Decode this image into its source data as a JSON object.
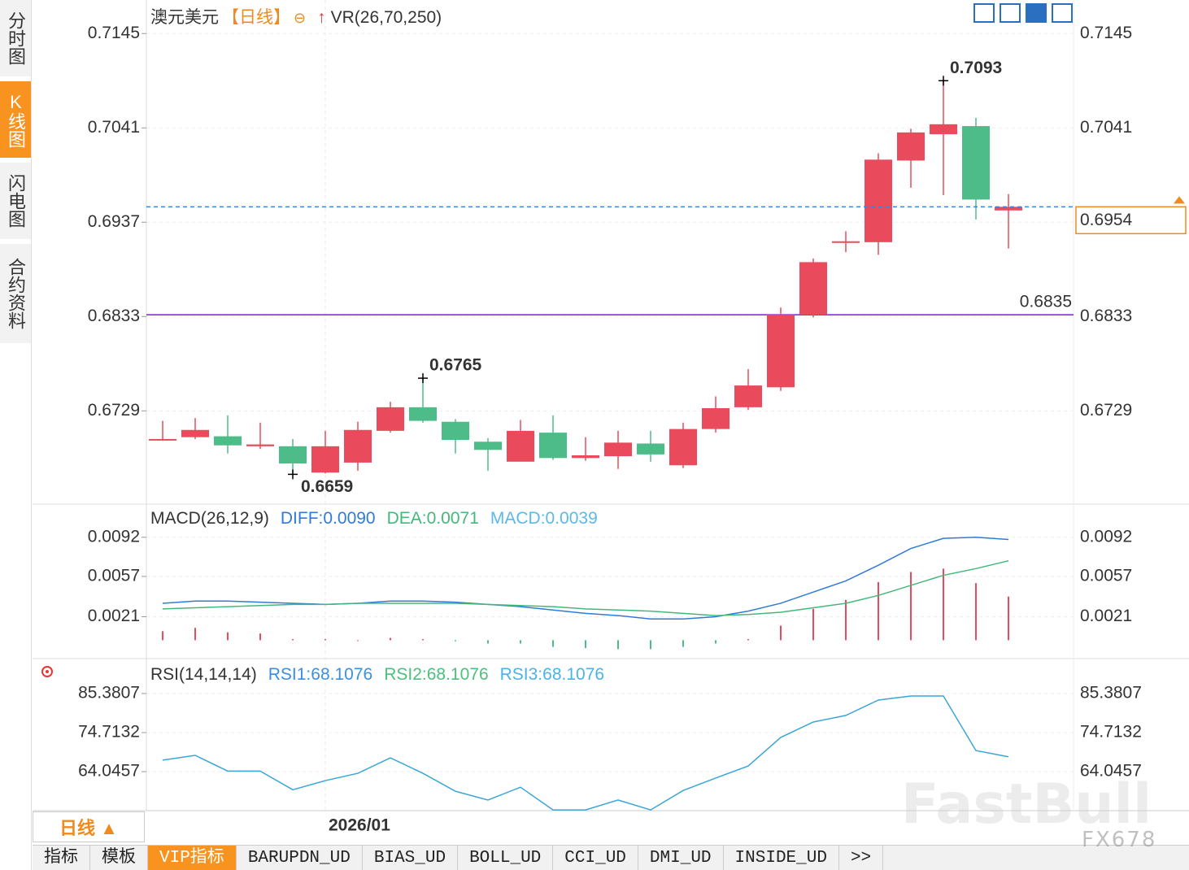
{
  "sidebar": {
    "tabs": [
      "分时图",
      "K线图",
      "闪电图",
      "合约资料"
    ],
    "active": 1
  },
  "header": {
    "symbol": "澳元美元",
    "period": "【日线】",
    "indicator": "VR(26,70,250)"
  },
  "chart_data": [
    {
      "type": "candlestick",
      "categories": [
        null,
        null,
        null,
        null,
        null,
        "2026/01",
        null,
        null,
        null,
        null,
        null,
        null,
        null,
        null,
        null,
        null,
        null,
        null,
        null,
        null,
        null,
        null,
        null,
        null,
        null,
        null,
        null
      ],
      "open": [
        0.6697,
        0.67,
        0.6701,
        0.669,
        0.669,
        0.6661,
        0.6672,
        0.6707,
        0.6733,
        0.6717,
        0.6695,
        0.6673,
        0.6705,
        0.6677,
        0.6679,
        0.6693,
        0.6669,
        0.6709,
        0.6733,
        0.6755,
        0.6835,
        0.6915,
        0.6915,
        0.7005,
        0.7034,
        0.7043,
        0.695
      ],
      "high": [
        0.6718,
        0.6721,
        0.6724,
        0.6716,
        0.6698,
        0.6707,
        0.6717,
        0.6739,
        0.6765,
        0.672,
        0.6699,
        0.6719,
        0.6724,
        0.67,
        0.6707,
        0.6707,
        0.6716,
        0.6745,
        0.6775,
        0.6843,
        0.6897,
        0.6927,
        0.7013,
        0.704,
        0.7093,
        0.7052,
        0.6968
      ],
      "low": [
        0.6696,
        0.6698,
        0.6682,
        0.6687,
        0.6659,
        0.666,
        0.6663,
        0.6705,
        0.6716,
        0.6682,
        0.6663,
        0.6673,
        0.6675,
        0.6674,
        0.6665,
        0.6673,
        0.6666,
        0.6705,
        0.673,
        0.6751,
        0.6832,
        0.6904,
        0.6901,
        0.6975,
        0.6967,
        0.694,
        0.6908
      ],
      "close": [
        0.6698,
        0.6708,
        0.6691,
        0.6692,
        0.6671,
        0.669,
        0.6708,
        0.6733,
        0.6718,
        0.6697,
        0.6686,
        0.6707,
        0.6677,
        0.668,
        0.6694,
        0.6681,
        0.6709,
        0.6732,
        0.6757,
        0.6835,
        0.6893,
        0.6916,
        0.7006,
        0.7036,
        0.7045,
        0.6962,
        0.6954
      ],
      "high_labels": [
        null,
        null,
        null,
        null,
        null,
        null,
        null,
        null,
        "0.6765",
        null,
        null,
        null,
        null,
        null,
        null,
        null,
        null,
        null,
        null,
        null,
        null,
        null,
        null,
        null,
        "0.7093",
        null,
        null
      ],
      "low_labels": [
        null,
        null,
        null,
        null,
        "0.6659",
        null,
        null,
        null,
        null,
        null,
        null,
        null,
        null,
        null,
        null,
        null,
        null,
        null,
        null,
        null,
        null,
        null,
        null,
        null,
        null,
        null,
        null
      ],
      "up_color": "#e94b5d",
      "down_color": "#4dbc88",
      "hline": 0.6835,
      "hline_color": "#7a1fd6",
      "last_line_color": "#3a86d6",
      "last_label_color": "#f08a1c",
      "ylim": [
        0.6628,
        0.7182
      ],
      "yticks": [
        0.7145,
        0.7041,
        0.6937,
        0.6833,
        0.6729
      ],
      "grid": true
    },
    {
      "type": "macd",
      "title": "MACD(26,12,9)",
      "series": [
        {
          "name": "DIFF:0.0090",
          "color": "#2f7bd8",
          "values": [
            0.0033,
            0.0035,
            0.0035,
            0.0034,
            0.0033,
            0.0032,
            0.0033,
            0.0035,
            0.0035,
            0.0034,
            0.0032,
            0.003,
            0.0027,
            0.0024,
            0.0022,
            0.0019,
            0.0019,
            0.0021,
            0.0026,
            0.0033,
            0.0043,
            0.0053,
            0.0067,
            0.0082,
            0.0091,
            0.0092,
            0.009
          ]
        },
        {
          "name": "DEA:0.0071",
          "color": "#44b87a",
          "values": [
            0.0028,
            0.0029,
            0.003,
            0.0031,
            0.0032,
            0.0032,
            0.0033,
            0.0033,
            0.0033,
            0.0033,
            0.0032,
            0.0031,
            0.003,
            0.0028,
            0.0027,
            0.0026,
            0.0024,
            0.0022,
            0.0023,
            0.0025,
            0.0029,
            0.0033,
            0.004,
            0.0049,
            0.0058,
            0.0064,
            0.0071
          ]
        },
        {
          "name": "MACD:0.0039",
          "color": "#5cb8e8",
          "type": "histogram",
          "values": [
            0.0008,
            0.0011,
            0.0007,
            0.0006,
            0.0001,
            0.0001,
            0.0,
            0.0002,
            0.0001,
            -0.0001,
            -0.0003,
            -0.0003,
            -0.0006,
            -0.0007,
            -0.0008,
            -0.0008,
            -0.0006,
            -0.0003,
            0.0001,
            0.0013,
            0.0028,
            0.0036,
            0.0052,
            0.0061,
            0.0064,
            0.0051,
            0.0039
          ]
        }
      ],
      "up_color": "#e94b5d",
      "down_color": "#4dbc88",
      "ylim": [
        -0.0015,
        0.0118
      ],
      "yticks": [
        0.0092,
        0.0057,
        0.0021
      ],
      "grid": true
    },
    {
      "type": "line",
      "title": "RSI(14,14,14)",
      "legend": [
        {
          "name": "RSI1:68.1076",
          "color": "#3b8fe0"
        },
        {
          "name": "RSI2:68.1076",
          "color": "#4cc07c"
        },
        {
          "name": "RSI3:68.1076",
          "color": "#4ab3e6"
        }
      ],
      "line_color": "#3aa6d8",
      "values": [
        67.2,
        68.5,
        64.2,
        64.2,
        59.1,
        61.6,
        63.6,
        67.8,
        63.6,
        58.7,
        56.3,
        59.8,
        53.6,
        53.6,
        56.3,
        53.6,
        58.9,
        62.3,
        65.6,
        73.4,
        77.6,
        79.4,
        83.6,
        84.7,
        84.7,
        69.8,
        68.1076
      ],
      "ylim": [
        53.4,
        93.8
      ],
      "yticks": [
        85.3807,
        74.7132,
        64.0457
      ],
      "grid": true
    }
  ],
  "period_button": "日线 ▲",
  "tabs": {
    "items": [
      "指标",
      "模板",
      "VIP指标",
      "BARUPDN_UD",
      "BIAS_UD",
      "BOLL_UD",
      "CCI_UD",
      "DMI_UD",
      "INSIDE_UD",
      ">>"
    ],
    "active": 2
  },
  "watermark": {
    "brand": "FastBull",
    "code": "FX678"
  }
}
